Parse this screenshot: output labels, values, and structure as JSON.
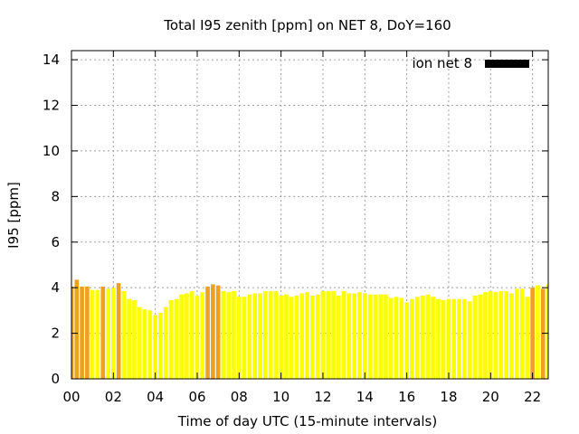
{
  "chart_data": {
    "type": "bar",
    "title": "Total I95 zenith [ppm] on NET 8, DoY=160",
    "xlabel": "Time of day UTC (15-minute intervals)",
    "ylabel": "I95 [ppm]",
    "xlim": [
      0,
      22.75
    ],
    "ylim": [
      0,
      14.4
    ],
    "xticks": [
      "00",
      "02",
      "04",
      "06",
      "08",
      "10",
      "12",
      "14",
      "16",
      "18",
      "20",
      "22"
    ],
    "yticks": [
      "0",
      "2",
      "4",
      "6",
      "8",
      "10",
      "12",
      "14"
    ],
    "grid": true,
    "legend": {
      "position": "top-right",
      "label": "ion net 8"
    },
    "bar_width_hours": 0.2,
    "colors": {
      "normal": "#ffff00",
      "high": "#f0a020",
      "legend": "#000000"
    },
    "series": [
      {
        "name": "ion net 8",
        "x": [
          0.0,
          0.25,
          0.5,
          0.75,
          1.0,
          1.25,
          1.5,
          1.75,
          2.0,
          2.25,
          2.5,
          2.75,
          3.0,
          3.25,
          3.5,
          3.75,
          4.0,
          4.25,
          4.5,
          4.75,
          5.0,
          5.25,
          5.5,
          5.75,
          6.0,
          6.25,
          6.5,
          6.75,
          7.0,
          7.25,
          7.5,
          7.75,
          8.0,
          8.25,
          8.5,
          8.75,
          9.0,
          9.25,
          9.5,
          9.75,
          10.0,
          10.25,
          10.5,
          10.75,
          11.0,
          11.25,
          11.5,
          11.75,
          12.0,
          12.25,
          12.5,
          12.75,
          13.0,
          13.25,
          13.5,
          13.75,
          14.0,
          14.25,
          14.5,
          14.75,
          15.0,
          15.25,
          15.5,
          15.75,
          16.0,
          16.25,
          16.5,
          16.75,
          17.0,
          17.25,
          17.5,
          17.75,
          18.0,
          18.25,
          18.5,
          18.75,
          19.0,
          19.25,
          19.5,
          19.75,
          20.0,
          20.25,
          20.5,
          20.75,
          21.0,
          21.25,
          21.5,
          21.75,
          22.0,
          22.25,
          22.5,
          22.75
        ],
        "values": [
          4.05,
          4.35,
          4.05,
          4.05,
          3.9,
          3.9,
          4.05,
          3.95,
          4.0,
          4.2,
          3.85,
          3.5,
          3.45,
          3.15,
          3.05,
          3.0,
          2.8,
          2.9,
          3.15,
          3.45,
          3.5,
          3.7,
          3.75,
          3.85,
          3.65,
          3.8,
          4.05,
          4.15,
          4.1,
          3.85,
          3.8,
          3.85,
          3.6,
          3.6,
          3.7,
          3.75,
          3.75,
          3.85,
          3.85,
          3.85,
          3.65,
          3.7,
          3.6,
          3.65,
          3.75,
          3.8,
          3.65,
          3.7,
          3.85,
          3.85,
          3.85,
          3.65,
          3.85,
          3.75,
          3.75,
          3.8,
          3.75,
          3.7,
          3.7,
          3.7,
          3.7,
          3.55,
          3.6,
          3.55,
          3.35,
          3.5,
          3.6,
          3.65,
          3.7,
          3.6,
          3.5,
          3.45,
          3.5,
          3.5,
          3.5,
          3.5,
          3.4,
          3.65,
          3.7,
          3.8,
          3.85,
          3.8,
          3.85,
          3.85,
          3.75,
          3.95,
          3.95,
          3.6,
          4.0,
          4.1,
          3.95,
          4.15
        ],
        "highlight": [
          0,
          1,
          2,
          3,
          6,
          9,
          26,
          27,
          28,
          88,
          90
        ]
      }
    ]
  }
}
